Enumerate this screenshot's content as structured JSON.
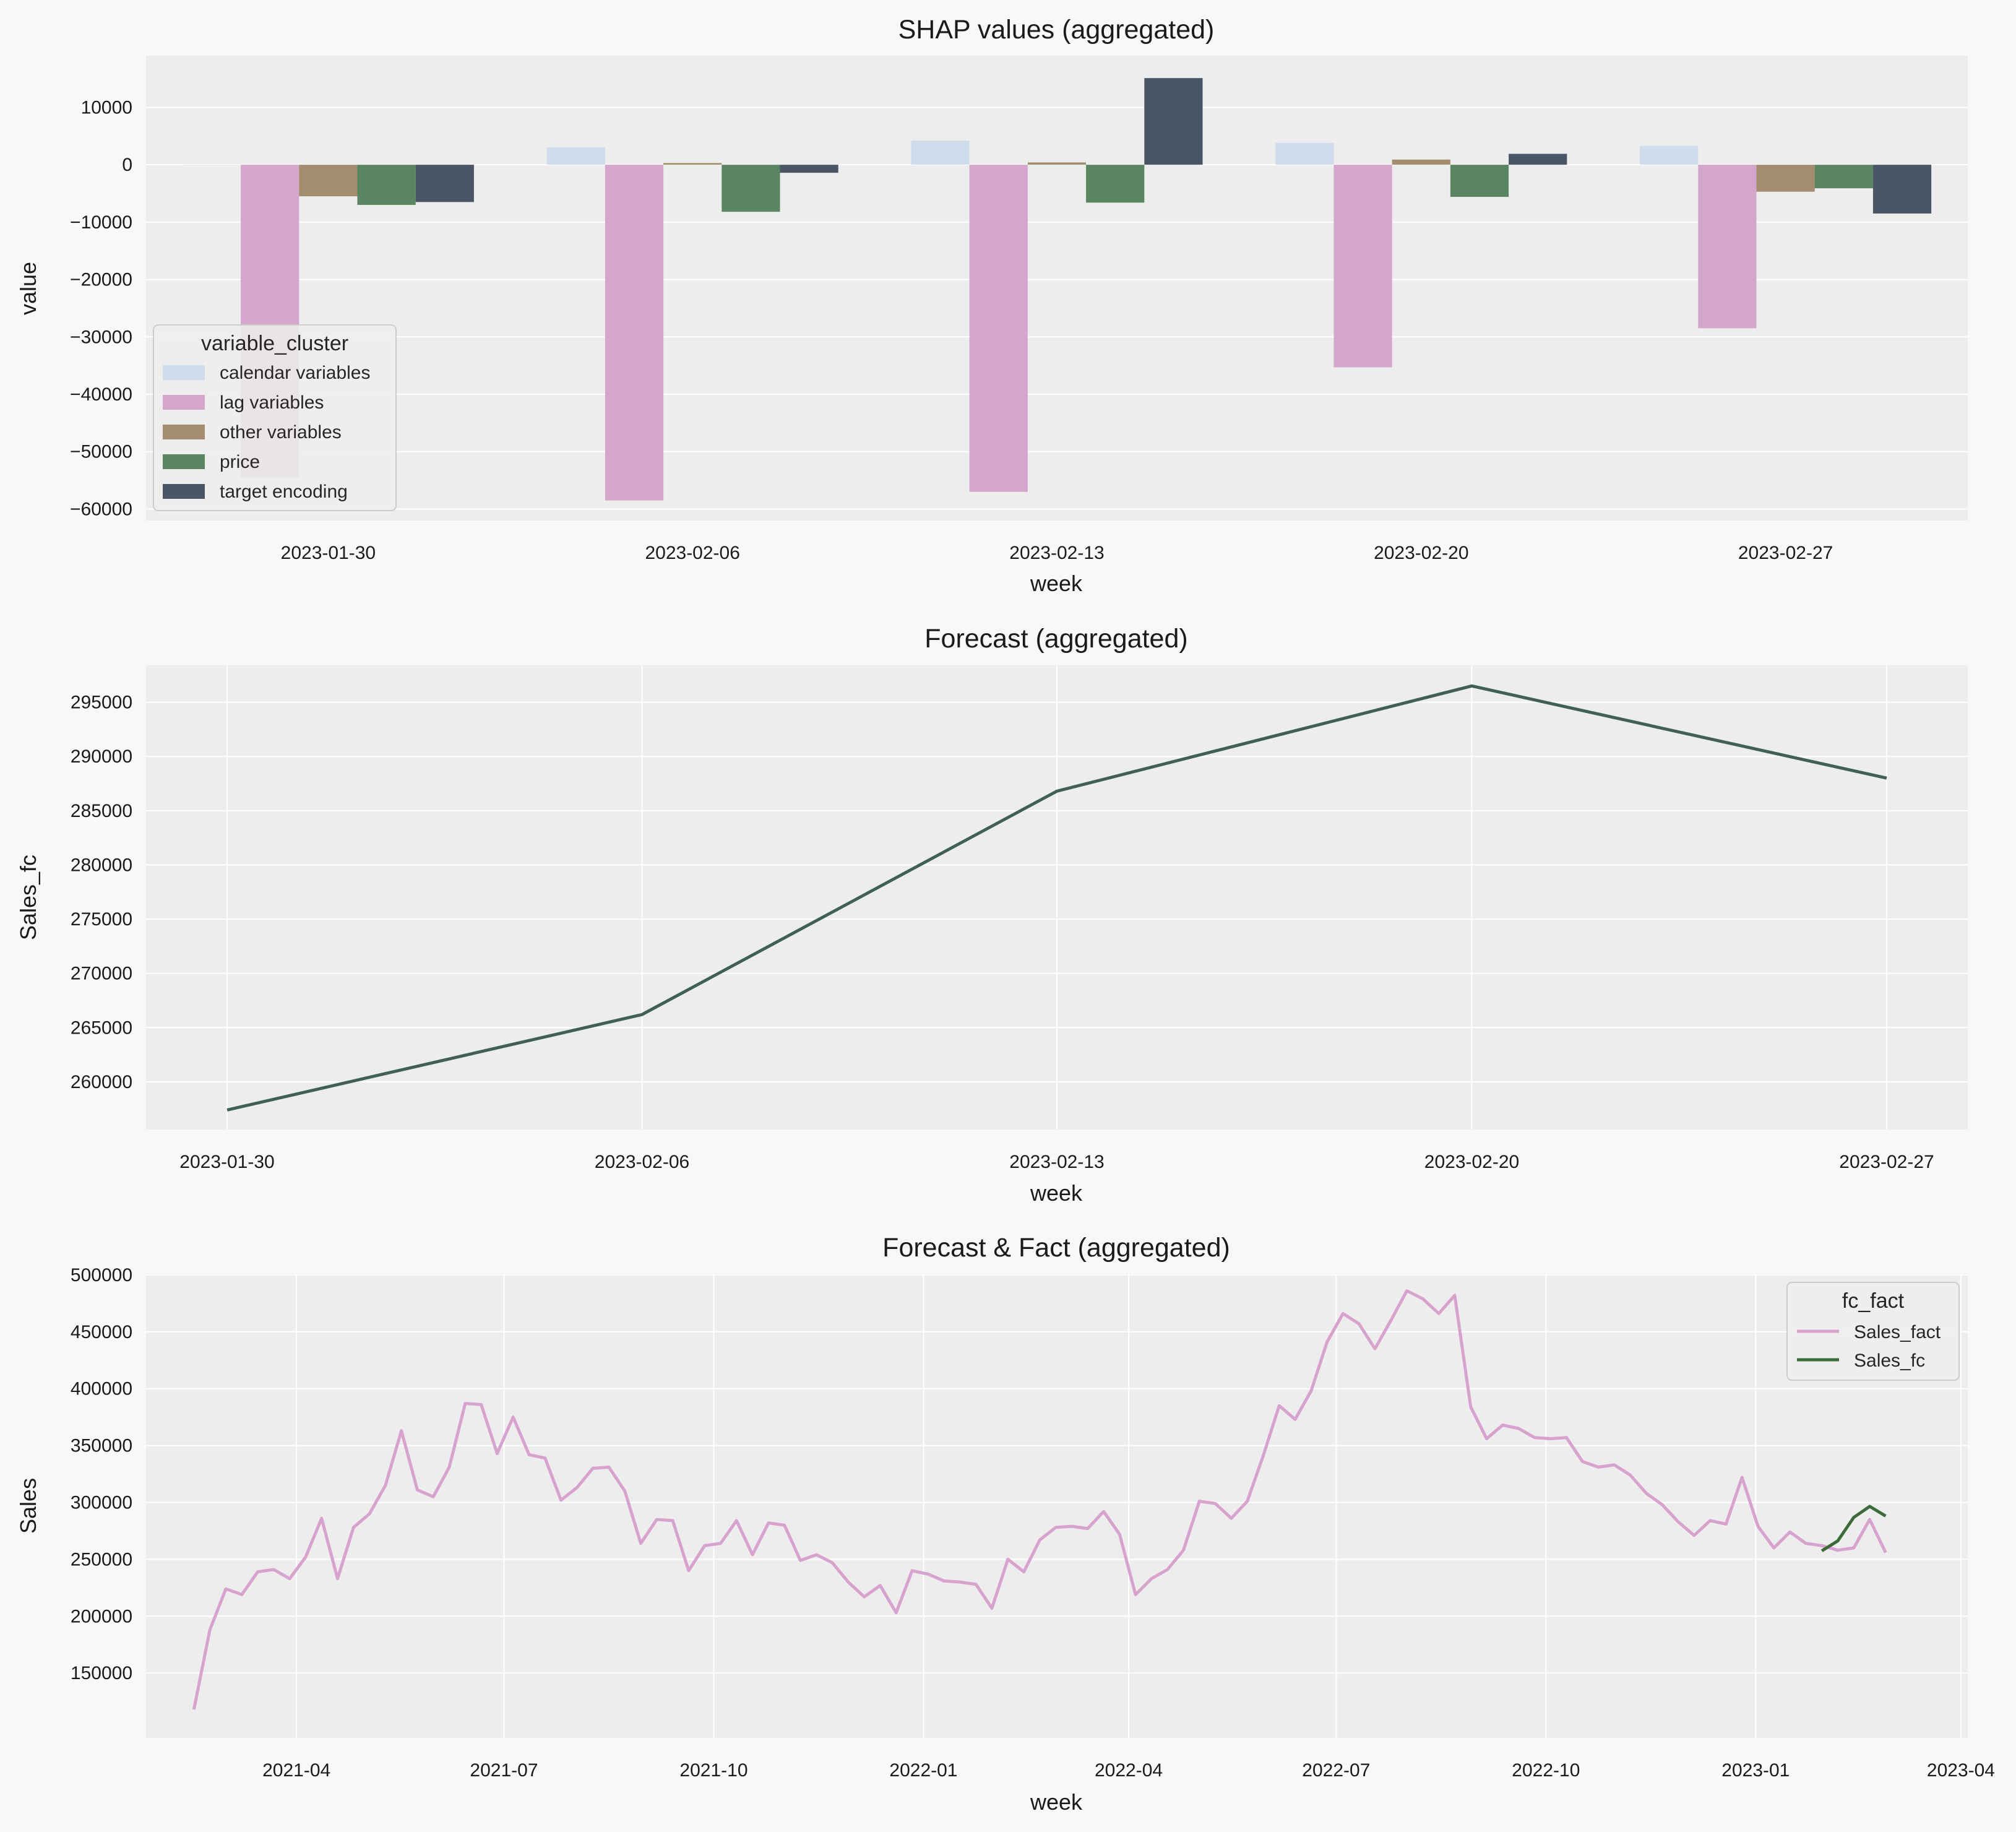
{
  "colors": {
    "figure_bg": "#f8f8f8",
    "axes_bg": "#ededed",
    "grid": "#ffffff",
    "calendar_variables": "#cfdcec",
    "lag_variables": "#d4a6cb",
    "other_variables": "#a38d6e",
    "price": "#5a8561",
    "target_encoding": "#4a5566",
    "forecast_line": "#3f5f57",
    "sales_fact": "#d7a2cd",
    "sales_fc": "#3b6b3a"
  },
  "chart_data": [
    {
      "type": "bar",
      "title": "SHAP values (aggregated)",
      "xlabel": "week",
      "ylabel": "value",
      "categories": [
        "2023-01-30",
        "2023-02-06",
        "2023-02-13",
        "2023-02-20",
        "2023-02-27"
      ],
      "ylim": [
        -62000,
        19000
      ],
      "yticks": [
        10000,
        0,
        -10000,
        -20000,
        -30000,
        -40000,
        -50000,
        -60000
      ],
      "ytick_labels": [
        "10000",
        "0",
        "−10000",
        "−20000",
        "−30000",
        "−40000",
        "−50000",
        "−60000"
      ],
      "grid": true,
      "legend": {
        "title": "variable_cluster",
        "placement": "lower-left"
      },
      "series": [
        {
          "name": "calendar variables",
          "color_key": "calendar_variables",
          "values": [
            0,
            3000,
            4200,
            3800,
            3300
          ]
        },
        {
          "name": "lag variables",
          "color_key": "lag_variables",
          "values": [
            -54500,
            -58500,
            -57000,
            -35300,
            -28500
          ]
        },
        {
          "name": "other variables",
          "color_key": "other_variables",
          "values": [
            -5500,
            300,
            400,
            900,
            -4700
          ]
        },
        {
          "name": "price",
          "color_key": "price",
          "values": [
            -7000,
            -8200,
            -6600,
            -5600,
            -4100
          ]
        },
        {
          "name": "target encoding",
          "color_key": "target_encoding",
          "values": [
            -6500,
            -1400,
            15100,
            1900,
            -8500
          ]
        }
      ]
    },
    {
      "type": "line",
      "title": "Forecast (aggregated)",
      "xlabel": "week",
      "ylabel": "Sales_fc",
      "categories": [
        "2023-01-30",
        "2023-02-06",
        "2023-02-13",
        "2023-02-20",
        "2023-02-27"
      ],
      "values": [
        257400,
        266200,
        286800,
        296500,
        288000
      ],
      "ylim": [
        255600,
        298400
      ],
      "yticks": [
        260000,
        265000,
        270000,
        275000,
        280000,
        285000,
        290000,
        295000
      ],
      "ytick_labels": [
        "260000",
        "265000",
        "270000",
        "275000",
        "280000",
        "285000",
        "290000",
        "295000"
      ],
      "grid": true
    },
    {
      "type": "line",
      "title": "Forecast & Fact (aggregated)",
      "xlabel": "week",
      "ylabel": "Sales",
      "xlim": [
        "2021-01-25",
        "2023-04-04"
      ],
      "xticks": [
        "2021-04-01",
        "2021-07-01",
        "2021-10-01",
        "2022-01-01",
        "2022-04-01",
        "2022-07-01",
        "2022-10-01",
        "2023-01-01",
        "2023-04-01"
      ],
      "xtick_labels": [
        "2021-04",
        "2021-07",
        "2021-10",
        "2022-01",
        "2022-04",
        "2022-07",
        "2022-10",
        "2023-01",
        "2023-04"
      ],
      "ylim": [
        93000,
        501000
      ],
      "yticks": [
        150000,
        200000,
        250000,
        300000,
        350000,
        400000,
        450000,
        500000
      ],
      "ytick_labels": [
        "150000",
        "200000",
        "250000",
        "300000",
        "350000",
        "400000",
        "450000",
        "500000"
      ],
      "grid": true,
      "legend": {
        "title": "fc_fact",
        "placement": "top-right"
      },
      "series": [
        {
          "name": "Sales_fact",
          "color_key": "sales_fact",
          "start_date": "2021-02-15",
          "step_days": 7,
          "values": [
            118000,
            188000,
            224000,
            219000,
            239000,
            241000,
            233000,
            252000,
            286000,
            233000,
            278000,
            290000,
            315000,
            363000,
            311000,
            305000,
            331000,
            387000,
            386000,
            343000,
            375000,
            342000,
            339000,
            302000,
            313000,
            330000,
            331000,
            310000,
            264000,
            285000,
            284000,
            240000,
            262000,
            264000,
            284000,
            254000,
            282000,
            280000,
            249000,
            254000,
            247000,
            230000,
            217000,
            227000,
            203000,
            240000,
            237000,
            231000,
            230000,
            228000,
            207000,
            250000,
            239000,
            267000,
            278000,
            279000,
            277000,
            292000,
            272000,
            219000,
            233000,
            241000,
            258000,
            301000,
            299000,
            286000,
            301000,
            341000,
            385000,
            373000,
            398000,
            441000,
            466000,
            457000,
            435000,
            460000,
            486000,
            479000,
            466000,
            482000,
            384000,
            356000,
            368000,
            365000,
            357000,
            356000,
            357000,
            336000,
            331000,
            333000,
            324000,
            308000,
            298000,
            283000,
            271000,
            284000,
            281000,
            322000,
            279000,
            260000,
            274000,
            264000,
            262000,
            258000,
            260000,
            285000,
            256000
          ]
        },
        {
          "name": "Sales_fc",
          "color_key": "sales_fc",
          "start_date": "2023-01-30",
          "step_days": 7,
          "values": [
            257400,
            266200,
            286800,
            296500,
            288000
          ]
        }
      ]
    }
  ]
}
